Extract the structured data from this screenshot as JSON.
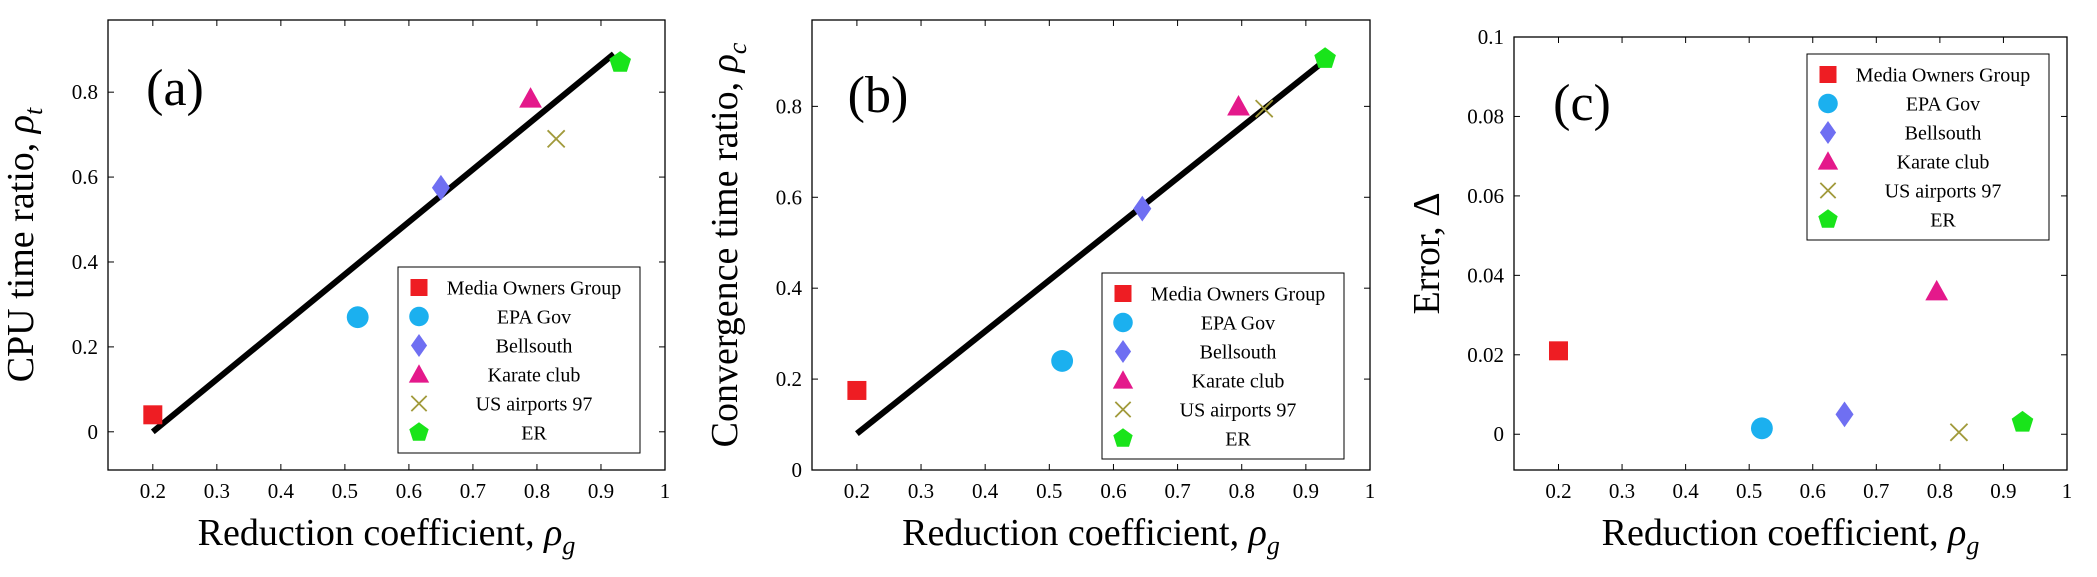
{
  "chart_data": [
    {
      "type": "scatter",
      "panel_label": "(a)",
      "xlabel_text": "Reduction coefficient, ",
      "xlabel_sym": "ρ",
      "xlabel_sub": "g",
      "ylabel_text": "CPU time ratio, ",
      "ylabel_sym": "ρ",
      "ylabel_sub": "t",
      "xlim": [
        0.13,
        1.0
      ],
      "ylim": [
        -0.09,
        0.97
      ],
      "xticks": [
        0.2,
        0.3,
        0.4,
        0.5,
        0.6,
        0.7,
        0.8,
        0.9,
        1.0
      ],
      "xtick_labels": [
        "0.2",
        "0.3",
        "0.4",
        "0.5",
        "0.6",
        "0.7",
        "0.8",
        "0.9",
        "1"
      ],
      "yticks": [
        0,
        0.2,
        0.4,
        0.6,
        0.8
      ],
      "ytick_labels": [
        "0",
        "0.2",
        "0.4",
        "0.6",
        "0.8"
      ],
      "fit_line": [
        [
          0.2,
          0.0
        ],
        [
          0.92,
          0.89
        ]
      ],
      "legend_position": "bottom-right",
      "series": [
        {
          "name": "Media Owners Group",
          "marker": "square",
          "color": "#ee1d23",
          "x": 0.2,
          "y": 0.04
        },
        {
          "name": "EPA Gov",
          "marker": "circle",
          "color": "#1bb0ef",
          "x": 0.52,
          "y": 0.27
        },
        {
          "name": "Bellsouth",
          "marker": "diamond",
          "color": "#6f6ff2",
          "x": 0.65,
          "y": 0.575
        },
        {
          "name": "Karate club",
          "marker": "triangle",
          "color": "#e4198b",
          "x": 0.79,
          "y": 0.785
        },
        {
          "name": "US airports 97",
          "marker": "cross",
          "color": "#a19a3b",
          "x": 0.83,
          "y": 0.69
        },
        {
          "name": "ER",
          "marker": "pentagon",
          "color": "#19e41a",
          "x": 0.93,
          "y": 0.87
        }
      ]
    },
    {
      "type": "scatter",
      "panel_label": "(b)",
      "xlabel_text": "Reduction coefficient, ",
      "xlabel_sym": "ρ",
      "xlabel_sub": "g",
      "ylabel_text": "Convergence time ratio, ",
      "ylabel_sym": "ρ",
      "ylabel_sub": "c",
      "xlim": [
        0.13,
        1.0
      ],
      "ylim": [
        0.0,
        0.99
      ],
      "xticks": [
        0.2,
        0.3,
        0.4,
        0.5,
        0.6,
        0.7,
        0.8,
        0.9,
        1.0
      ],
      "xtick_labels": [
        "0.2",
        "0.3",
        "0.4",
        "0.5",
        "0.6",
        "0.7",
        "0.8",
        "0.9",
        "1"
      ],
      "yticks": [
        0,
        0.2,
        0.4,
        0.6,
        0.8
      ],
      "ytick_labels": [
        "0",
        "0.2",
        "0.4",
        "0.6",
        "0.8"
      ],
      "fit_line": [
        [
          0.2,
          0.08
        ],
        [
          0.92,
          0.89
        ]
      ],
      "legend_position": "bottom-right",
      "series": [
        {
          "name": "Media Owners Group",
          "marker": "square",
          "color": "#ee1d23",
          "x": 0.2,
          "y": 0.175
        },
        {
          "name": "EPA Gov",
          "marker": "circle",
          "color": "#1bb0ef",
          "x": 0.52,
          "y": 0.24
        },
        {
          "name": "Bellsouth",
          "marker": "diamond",
          "color": "#6f6ff2",
          "x": 0.645,
          "y": 0.575
        },
        {
          "name": "Karate club",
          "marker": "triangle",
          "color": "#e4198b",
          "x": 0.795,
          "y": 0.8
        },
        {
          "name": "US airports 97",
          "marker": "cross",
          "color": "#a19a3b",
          "x": 0.835,
          "y": 0.795
        },
        {
          "name": "ER",
          "marker": "pentagon",
          "color": "#19e41a",
          "x": 0.93,
          "y": 0.905
        }
      ]
    },
    {
      "type": "scatter",
      "panel_label": "(c)",
      "xlabel_text": "Reduction coefficient, ",
      "xlabel_sym": "ρ",
      "xlabel_sub": "g",
      "ylabel_text": "Error, ",
      "ylabel_sym": "Δ",
      "ylabel_sub": "",
      "xlim": [
        0.13,
        1.0
      ],
      "ylim": [
        -0.009,
        0.1
      ],
      "xticks": [
        0.2,
        0.3,
        0.4,
        0.5,
        0.6,
        0.7,
        0.8,
        0.9,
        1.0
      ],
      "xtick_labels": [
        "0.2",
        "0.3",
        "0.4",
        "0.5",
        "0.6",
        "0.7",
        "0.8",
        "0.9",
        "1"
      ],
      "yticks": [
        0,
        0.02,
        0.04,
        0.06,
        0.08,
        0.1
      ],
      "ytick_labels": [
        "0",
        "0.02",
        "0.04",
        "0.06",
        "0.08",
        "0.1"
      ],
      "fit_line": null,
      "legend_position": "top-right",
      "series": [
        {
          "name": "Media Owners Group",
          "marker": "square",
          "color": "#ee1d23",
          "x": 0.2,
          "y": 0.021
        },
        {
          "name": "EPA Gov",
          "marker": "circle",
          "color": "#1bb0ef",
          "x": 0.52,
          "y": 0.0015
        },
        {
          "name": "Bellsouth",
          "marker": "diamond",
          "color": "#6f6ff2",
          "x": 0.65,
          "y": 0.005
        },
        {
          "name": "Karate club",
          "marker": "triangle",
          "color": "#e4198b",
          "x": 0.795,
          "y": 0.036
        },
        {
          "name": "US airports 97",
          "marker": "cross",
          "color": "#a19a3b",
          "x": 0.83,
          "y": 0.0005
        },
        {
          "name": "ER",
          "marker": "pentagon",
          "color": "#19e41a",
          "x": 0.93,
          "y": 0.003
        }
      ]
    }
  ]
}
